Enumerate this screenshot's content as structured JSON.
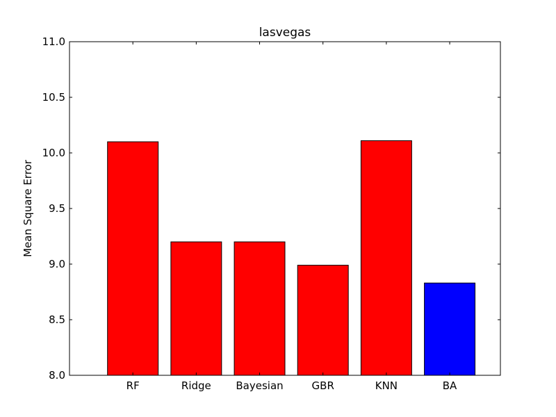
{
  "chart_data": {
    "type": "bar",
    "title": "lasvegas",
    "xlabel": "",
    "ylabel": "Mean Square Error",
    "categories": [
      "RF",
      "Ridge",
      "Bayesian",
      "GBR",
      "KNN",
      "BA"
    ],
    "values": [
      10.1,
      9.2,
      9.2,
      8.99,
      10.11,
      8.83
    ],
    "bar_colors": [
      "#ff0000",
      "#ff0000",
      "#ff0000",
      "#ff0000",
      "#ff0000",
      "#0000ff"
    ],
    "ylim": [
      8.0,
      11.0
    ],
    "yticks": [
      "8.0",
      "8.5",
      "9.0",
      "9.5",
      "10.0",
      "10.5",
      "11.0"
    ],
    "grid": false,
    "legend": "none"
  }
}
